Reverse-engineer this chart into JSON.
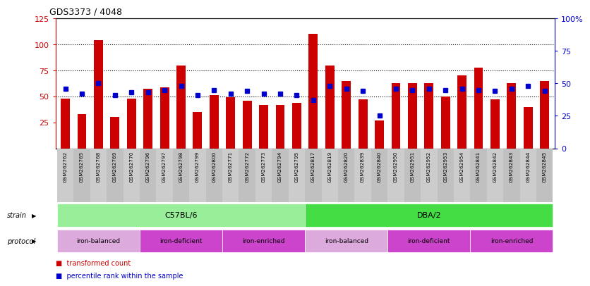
{
  "title": "GDS3373 / 4048",
  "samples": [
    "GSM262762",
    "GSM262765",
    "GSM262768",
    "GSM262769",
    "GSM262770",
    "GSM262796",
    "GSM262797",
    "GSM262798",
    "GSM262799",
    "GSM262800",
    "GSM262771",
    "GSM262772",
    "GSM262773",
    "GSM262794",
    "GSM262795",
    "GSM262817",
    "GSM262819",
    "GSM262820",
    "GSM262839",
    "GSM262840",
    "GSM262950",
    "GSM262951",
    "GSM262952",
    "GSM262953",
    "GSM262954",
    "GSM262841",
    "GSM262842",
    "GSM262843",
    "GSM262844",
    "GSM262845"
  ],
  "bar_values": [
    48,
    33,
    104,
    30,
    48,
    57,
    59,
    80,
    35,
    51,
    49,
    46,
    42,
    42,
    44,
    110,
    80,
    65,
    47,
    27,
    63,
    63,
    63,
    50,
    70,
    78,
    47,
    63,
    40,
    65
  ],
  "blue_values": [
    46,
    42,
    50,
    41,
    43,
    43,
    45,
    48,
    41,
    45,
    42,
    44,
    42,
    42,
    41,
    37,
    48,
    46,
    44,
    25,
    46,
    45,
    46,
    45,
    46,
    45,
    44,
    46,
    48,
    44
  ],
  "bar_color": "#cc0000",
  "blue_color": "#0000cc",
  "ylim_left": [
    0,
    125
  ],
  "ylim_right": [
    0,
    100
  ],
  "yticks_left": [
    25,
    50,
    75,
    100,
    125
  ],
  "yticks_right": [
    0,
    25,
    50,
    75,
    100
  ],
  "ytick_labels_right": [
    "0",
    "25",
    "50",
    "75",
    "100%"
  ],
  "hlines": [
    50,
    75,
    100
  ],
  "strain_green_c57": "#99ee99",
  "strain_green_dba": "#44dd44",
  "proto_balanced_color": "#ddaadd",
  "proto_deficient_color": "#cc44cc",
  "proto_enriched_color": "#cc44cc",
  "strain_row": [
    {
      "label": "C57BL/6",
      "start": 0,
      "end": 14
    },
    {
      "label": "DBA/2",
      "start": 15,
      "end": 29
    }
  ],
  "protocol_row": [
    {
      "label": "iron-balanced",
      "start": 0,
      "end": 4,
      "light": true
    },
    {
      "label": "iron-deficient",
      "start": 5,
      "end": 9,
      "light": false
    },
    {
      "label": "iron-enriched",
      "start": 10,
      "end": 14,
      "light": false
    },
    {
      "label": "iron-balanced",
      "start": 15,
      "end": 19,
      "light": true
    },
    {
      "label": "iron-deficient",
      "start": 20,
      "end": 24,
      "light": false
    },
    {
      "label": "iron-enriched",
      "start": 25,
      "end": 29,
      "light": false
    }
  ],
  "legend_bar_label": "transformed count",
  "legend_blue_label": "percentile rank within the sample"
}
